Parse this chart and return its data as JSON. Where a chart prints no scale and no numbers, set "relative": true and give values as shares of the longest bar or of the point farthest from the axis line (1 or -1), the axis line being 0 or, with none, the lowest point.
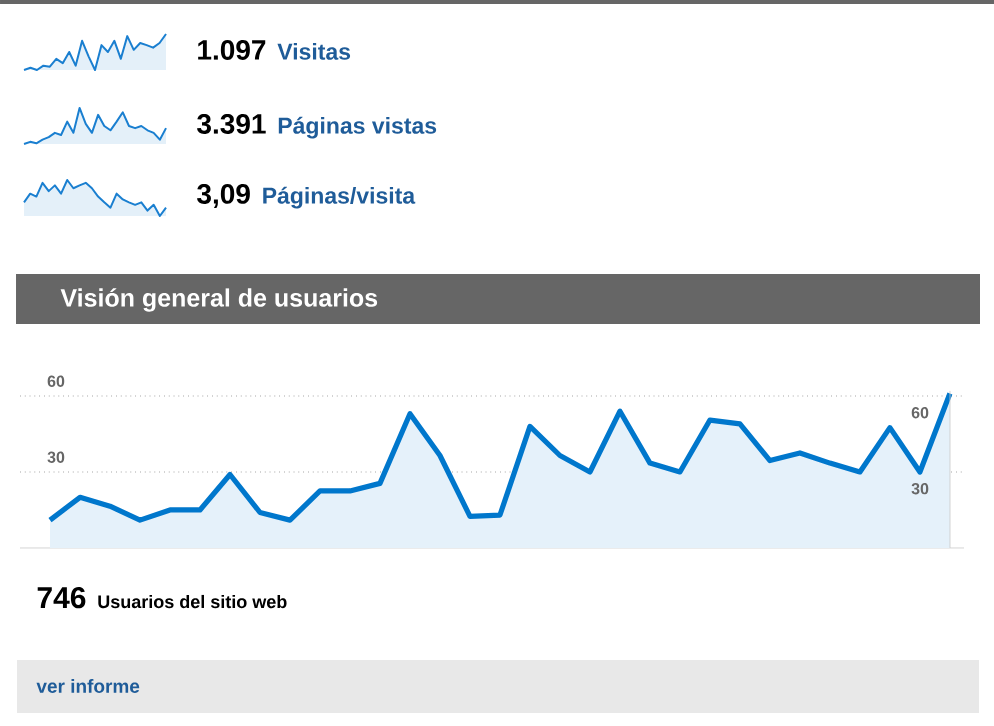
{
  "chart_data": [
    {
      "type": "area",
      "annotations": [
        "1.097",
        "Visitas"
      ],
      "relative": true,
      "color": "#1a7fd0",
      "categories": [
        null,
        null,
        null,
        null,
        null,
        null,
        null,
        null,
        null,
        null,
        null,
        null,
        null,
        null,
        null,
        null,
        null,
        null,
        null,
        null,
        null,
        null,
        null
      ],
      "values": [
        0.0,
        0.06,
        0.0,
        0.12,
        0.09,
        0.31,
        0.19,
        0.5,
        0.12,
        0.81,
        0.38,
        0.0,
        0.69,
        0.5,
        0.81,
        0.31,
        0.94,
        0.56,
        0.75,
        0.69,
        0.62,
        0.75,
        1.0
      ]
    },
    {
      "type": "area",
      "annotations": [
        "3.391",
        "Páginas vistas"
      ],
      "relative": true,
      "color": "#1a7fd0",
      "categories": [
        null,
        null,
        null,
        null,
        null,
        null,
        null,
        null,
        null,
        null,
        null,
        null,
        null,
        null,
        null,
        null,
        null,
        null,
        null,
        null,
        null,
        null,
        null,
        null
      ],
      "values": [
        0.0,
        0.06,
        0.02,
        0.12,
        0.19,
        0.31,
        0.25,
        0.62,
        0.31,
        1.0,
        0.56,
        0.31,
        0.81,
        0.5,
        0.38,
        0.62,
        0.88,
        0.5,
        0.44,
        0.5,
        0.38,
        0.31,
        0.12,
        0.44
      ]
    },
    {
      "type": "area",
      "annotations": [
        "3,09",
        "Páginas/visita"
      ],
      "relative": true,
      "color": "#1a7fd0",
      "categories": [
        null,
        null,
        null,
        null,
        null,
        null,
        null,
        null,
        null,
        null,
        null,
        null,
        null,
        null,
        null,
        null,
        null,
        null,
        null,
        null,
        null,
        null,
        null,
        null
      ],
      "values": [
        0.38,
        0.62,
        0.54,
        0.92,
        0.69,
        0.85,
        0.62,
        1.0,
        0.77,
        0.85,
        0.92,
        0.77,
        0.54,
        0.38,
        0.23,
        0.62,
        0.46,
        0.38,
        0.31,
        0.38,
        0.15,
        0.31,
        0.0,
        0.23
      ]
    },
    {
      "type": "area",
      "title": "Visión general de usuarios",
      "color": "#0077cc",
      "grid": "y",
      "categories": [
        null,
        null,
        null,
        null,
        null,
        null,
        null,
        null,
        null,
        null,
        null,
        null,
        null,
        null,
        null,
        null,
        null,
        null,
        null,
        null,
        null,
        null,
        null,
        null,
        null,
        null,
        null,
        null,
        null,
        null,
        null
      ],
      "values": [
        11,
        20,
        16.5,
        11,
        15,
        15,
        29,
        14,
        11,
        22.5,
        22.5,
        25.5,
        53,
        36.5,
        12.5,
        13,
        48,
        36.5,
        30,
        54,
        33.5,
        30,
        50.5,
        49,
        34.5,
        37.5,
        33.5,
        30,
        47.5,
        30,
        61
      ],
      "ylim": [
        0,
        62
      ],
      "yticks": [
        30,
        60
      ],
      "y2lim": [
        0,
        62
      ],
      "y2ticks": [
        30,
        60
      ],
      "annotations": [
        "746",
        "Usuarios del sitio web",
        "ver informe"
      ]
    }
  ]
}
